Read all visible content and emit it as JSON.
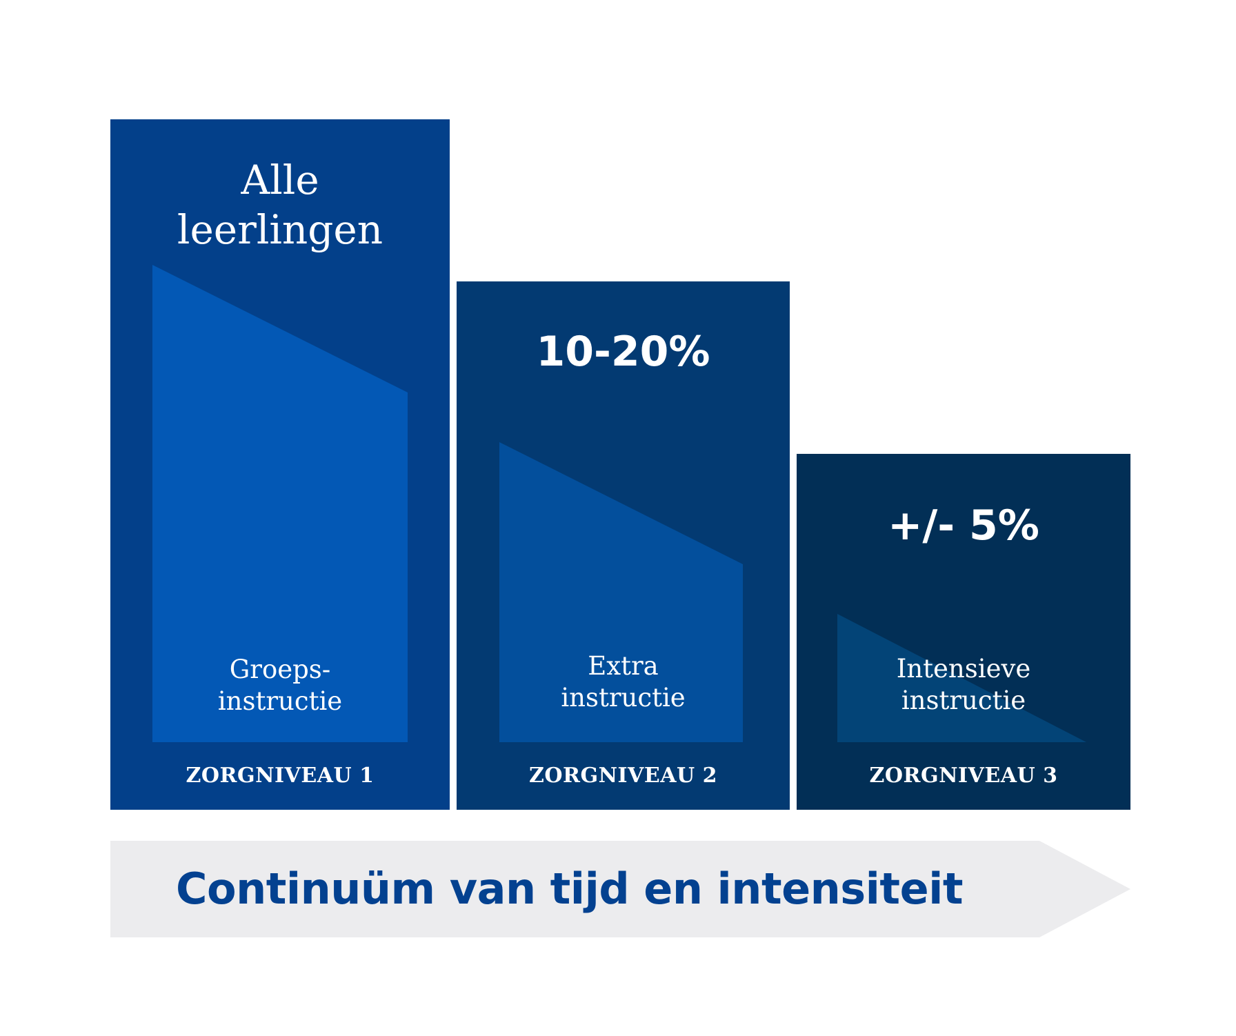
{
  "levels": [
    {
      "headline_line1": "Alle",
      "headline_line2": "leerlingen",
      "instruction_line1": "Groeps-",
      "instruction_line2": "instructie",
      "label": "ZORGNIVEAU 1"
    },
    {
      "headline": "10-20%",
      "instruction_line1": "Extra",
      "instruction_line2": "instructie",
      "label": "ZORGNIVEAU 2"
    },
    {
      "headline": "+/- 5%",
      "instruction_line1": "Intensieve",
      "instruction_line2": "instructie",
      "label": "ZORGNIVEAU 3"
    }
  ],
  "arrow": {
    "label": "Continuüm van tijd en intensiteit"
  },
  "colors": {
    "level1_bg": "#03408a",
    "level1_shape": "#0358b5",
    "level2_bg": "#033a72",
    "level2_shape": "#034f9c",
    "level3_bg": "#022f56",
    "level3_shape": "#034477",
    "arrow_fill": "#ececee",
    "arrow_text": "#034190"
  }
}
